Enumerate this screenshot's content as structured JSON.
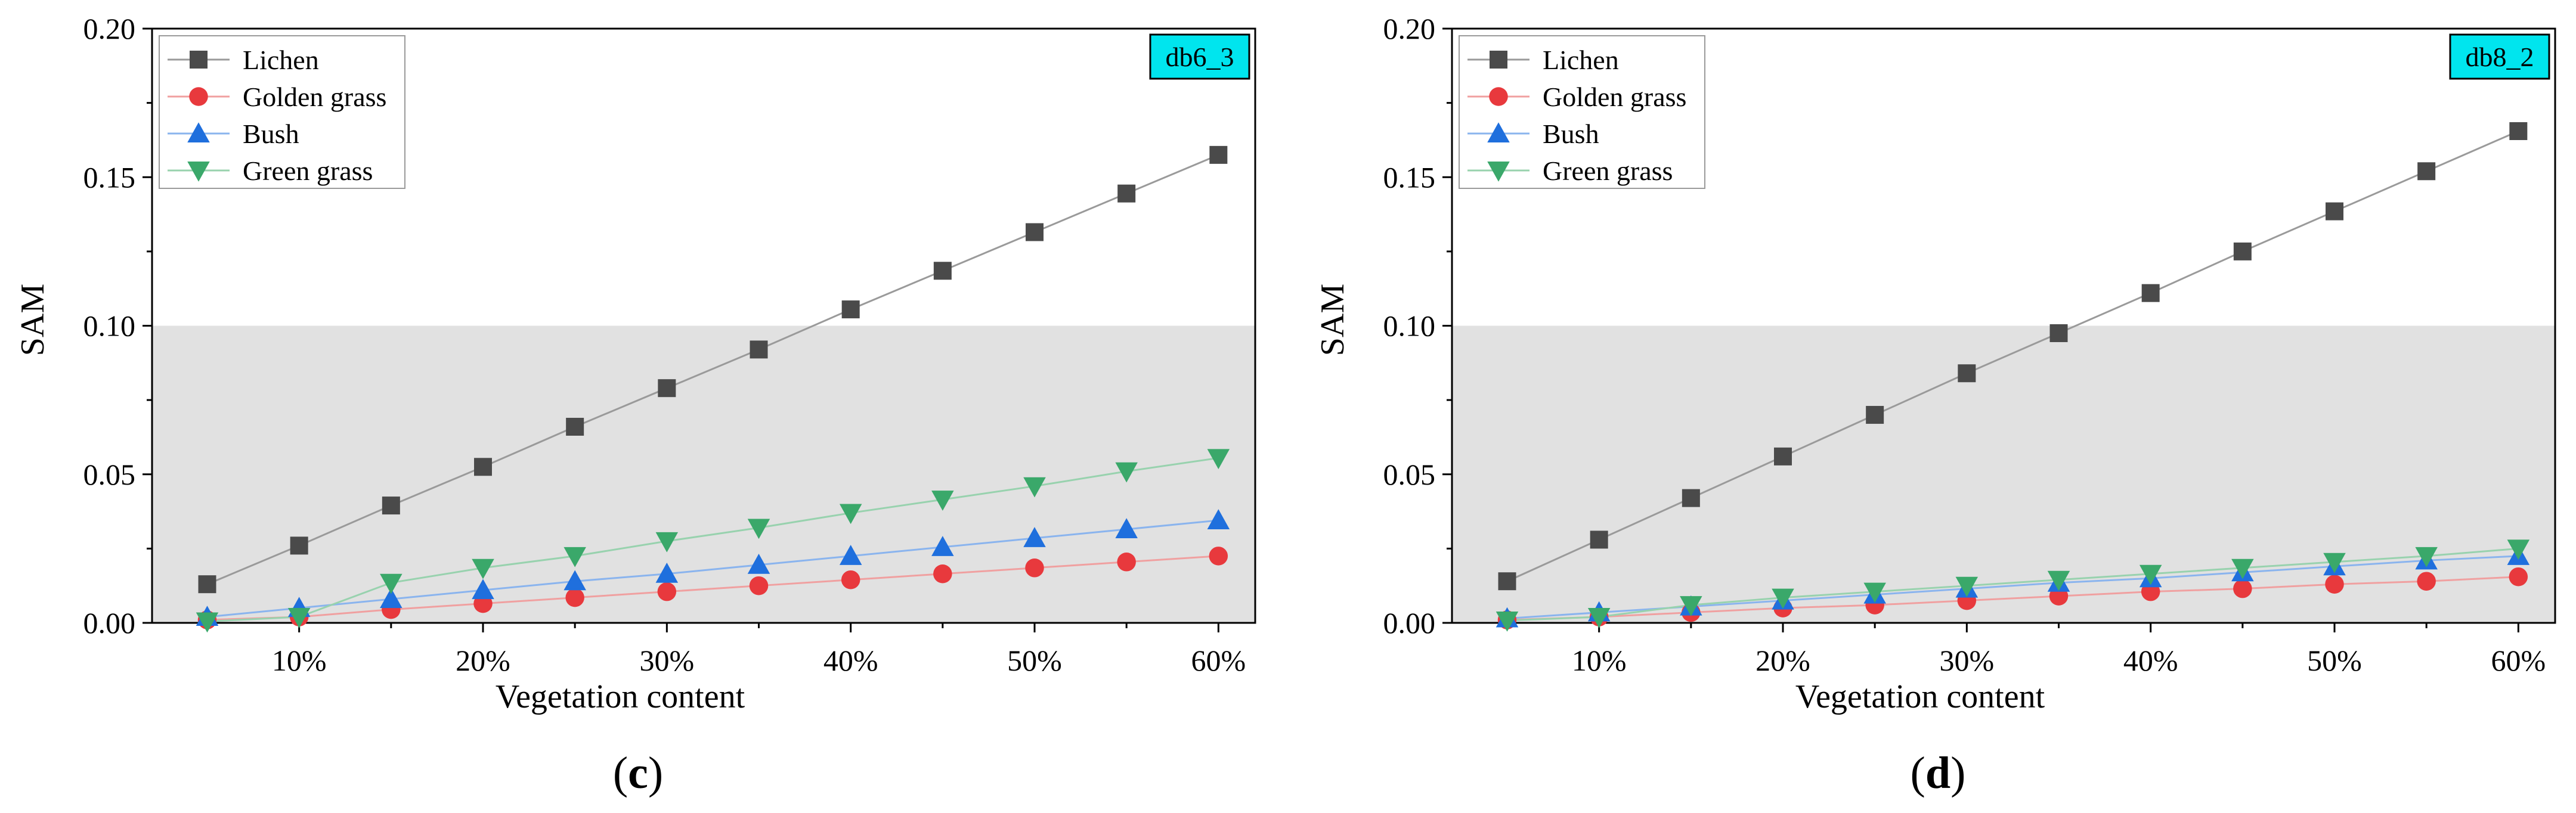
{
  "chart_data": [
    {
      "type": "line",
      "panel_label": "(c)",
      "panel_letter": "c",
      "tag": "db6_3",
      "title": "",
      "xlabel": "Vegetation content",
      "ylabel": "SAM",
      "x": [
        5,
        10,
        15,
        20,
        25,
        30,
        35,
        40,
        45,
        50,
        55,
        60
      ],
      "xlim": [
        2,
        62
      ],
      "ylim": [
        0,
        0.2
      ],
      "x_ticks": [
        10,
        20,
        30,
        40,
        50,
        60
      ],
      "x_tick_labels": [
        "10%",
        "20%",
        "30%",
        "40%",
        "50%",
        "60%"
      ],
      "y_ticks": [
        0,
        0.05,
        0.1,
        0.15,
        0.2
      ],
      "y_tick_labels": [
        "0.00",
        "0.05",
        "0.10",
        "0.15",
        "0.20"
      ],
      "shaded_region": [
        0,
        0.1
      ],
      "legend_position": "top-left",
      "series": [
        {
          "name": "Lichen",
          "marker": "square",
          "color": "#4a4a4a",
          "line_color": "#9a9a9a",
          "values": [
            0.013,
            0.026,
            0.0395,
            0.0525,
            0.066,
            0.079,
            0.092,
            0.1055,
            0.1185,
            0.1315,
            0.1445,
            0.1575
          ]
        },
        {
          "name": "Golden grass",
          "marker": "circle",
          "color": "#e8393d",
          "line_color": "#f0a0a0",
          "values": [
            0.001,
            0.002,
            0.0045,
            0.0065,
            0.0085,
            0.0105,
            0.0125,
            0.0145,
            0.0165,
            0.0185,
            0.0205,
            0.0225
          ]
        },
        {
          "name": "Bush",
          "marker": "triangle-up",
          "color": "#1f6fdd",
          "line_color": "#8ab4ee",
          "values": [
            0.002,
            0.005,
            0.008,
            0.011,
            0.014,
            0.0165,
            0.0195,
            0.0225,
            0.0255,
            0.0285,
            0.0315,
            0.0345
          ]
        },
        {
          "name": "Green grass",
          "marker": "triangle-down",
          "color": "#3aa86a",
          "line_color": "#98d2ae",
          "values": [
            0.0005,
            0.002,
            0.0135,
            0.0185,
            0.0225,
            0.0275,
            0.032,
            0.037,
            0.0415,
            0.046,
            0.051,
            0.0555
          ]
        }
      ]
    },
    {
      "type": "line",
      "panel_label": "(d)",
      "panel_letter": "d",
      "tag": "db8_2",
      "title": "",
      "xlabel": "Vegetation content",
      "ylabel": "SAM",
      "x": [
        5,
        10,
        15,
        20,
        25,
        30,
        35,
        40,
        45,
        50,
        55,
        60
      ],
      "xlim": [
        2,
        62
      ],
      "ylim": [
        0,
        0.2
      ],
      "x_ticks": [
        10,
        20,
        30,
        40,
        50,
        60
      ],
      "x_tick_labels": [
        "10%",
        "20%",
        "30%",
        "40%",
        "50%",
        "60%"
      ],
      "y_ticks": [
        0,
        0.05,
        0.1,
        0.15,
        0.2
      ],
      "y_tick_labels": [
        "0.00",
        "0.05",
        "0.10",
        "0.15",
        "0.20"
      ],
      "shaded_region": [
        0,
        0.1
      ],
      "legend_position": "top-left",
      "series": [
        {
          "name": "Lichen",
          "marker": "square",
          "color": "#4a4a4a",
          "line_color": "#9a9a9a",
          "values": [
            0.014,
            0.028,
            0.042,
            0.056,
            0.07,
            0.084,
            0.0975,
            0.111,
            0.125,
            0.1385,
            0.152,
            0.1655
          ]
        },
        {
          "name": "Golden grass",
          "marker": "circle",
          "color": "#e8393d",
          "line_color": "#f0a0a0",
          "values": [
            0.001,
            0.002,
            0.0035,
            0.005,
            0.006,
            0.0075,
            0.009,
            0.0105,
            0.0115,
            0.013,
            0.014,
            0.0155
          ]
        },
        {
          "name": "Bush",
          "marker": "triangle-up",
          "color": "#1f6fdd",
          "line_color": "#8ab4ee",
          "values": [
            0.0015,
            0.0035,
            0.0055,
            0.0075,
            0.0095,
            0.0115,
            0.0135,
            0.015,
            0.017,
            0.019,
            0.021,
            0.0225
          ]
        },
        {
          "name": "Green grass",
          "marker": "triangle-down",
          "color": "#3aa86a",
          "line_color": "#98d2ae",
          "values": [
            0.0008,
            0.002,
            0.006,
            0.0085,
            0.0105,
            0.0125,
            0.0145,
            0.0165,
            0.0185,
            0.0205,
            0.0225,
            0.025
          ]
        }
      ]
    }
  ],
  "style": {
    "tag_background": "#00e5ee",
    "shade_color": "#e1e1e1",
    "axis_color": "#000000"
  }
}
